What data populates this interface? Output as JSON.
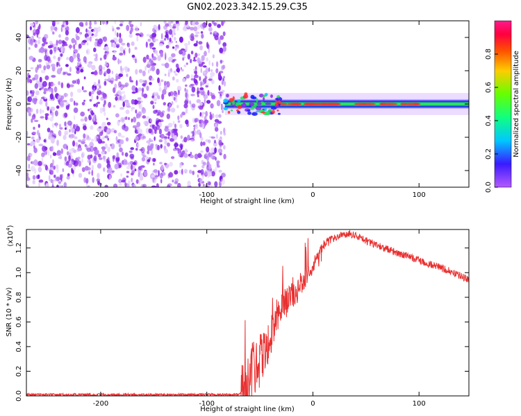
{
  "title": "GN02.2023.342.15.29.C35",
  "colors": {
    "signal": "#e83030",
    "noise_purple": "#8a2be2",
    "band_edge": "#1a1aff",
    "band_core": "#22dd55",
    "band_peak": "#ff2a2a"
  },
  "chart_data": [
    {
      "type": "heatmap",
      "xlabel": "Height of straight line (km)",
      "ylabel": "Frequency (Hz)",
      "xlim": [
        -270,
        147
      ],
      "ylim": [
        -50,
        50
      ],
      "xticks": [
        -200,
        -100,
        0,
        100
      ],
      "yticks": [
        -40,
        -20,
        0,
        20,
        40
      ],
      "noise_region_x": [
        -270,
        -83
      ],
      "signal_band": {
        "x_start": -83,
        "x_end": 147,
        "frequency_center": 0,
        "frequency_halfwidth": 3
      },
      "colorbar": {
        "label": "Normalized spectral amplitude",
        "range": [
          0,
          1
        ],
        "ticks": [
          "0.0",
          "0.2",
          "0.4",
          "0.6",
          "0.8"
        ],
        "colormap": "rainbow (purple-blue-cyan-green-yellow-red-magenta)"
      }
    },
    {
      "type": "line",
      "xlabel": "Height of straight line (km)",
      "ylabel": "SNR (10 * v/v)",
      "yscale_label": "(x10",
      "yscale_exp": "4",
      "yscale_close": ")",
      "xlim": [
        -270,
        147
      ],
      "ylim": [
        0,
        1.35
      ],
      "xticks": [
        -200,
        -100,
        0,
        100
      ],
      "yticks": [
        "0.0",
        "0.2",
        "0.4",
        "0.6",
        "0.8",
        "1.0",
        "1.2"
      ],
      "series": [
        {
          "x": [
            -270,
            -200,
            -100,
            -70,
            -64,
            -60,
            -55,
            -50,
            -45,
            -40,
            -35,
            -30,
            -25,
            -20,
            -15,
            -10,
            -5,
            0,
            5,
            10,
            15,
            20,
            25,
            30,
            35,
            40,
            45,
            50,
            60,
            70,
            80,
            90,
            100,
            110,
            120,
            130,
            140,
            147
          ],
          "y": [
            0.01,
            0.01,
            0.01,
            0.01,
            0.08,
            0.15,
            0.22,
            0.28,
            0.38,
            0.52,
            0.62,
            0.68,
            0.74,
            0.8,
            0.86,
            0.92,
            0.98,
            1.06,
            1.14,
            1.22,
            1.26,
            1.28,
            1.3,
            1.3,
            1.31,
            1.3,
            1.29,
            1.26,
            1.22,
            1.19,
            1.16,
            1.13,
            1.1,
            1.07,
            1.04,
            1.01,
            0.97,
            0.94
          ]
        }
      ]
    }
  ]
}
